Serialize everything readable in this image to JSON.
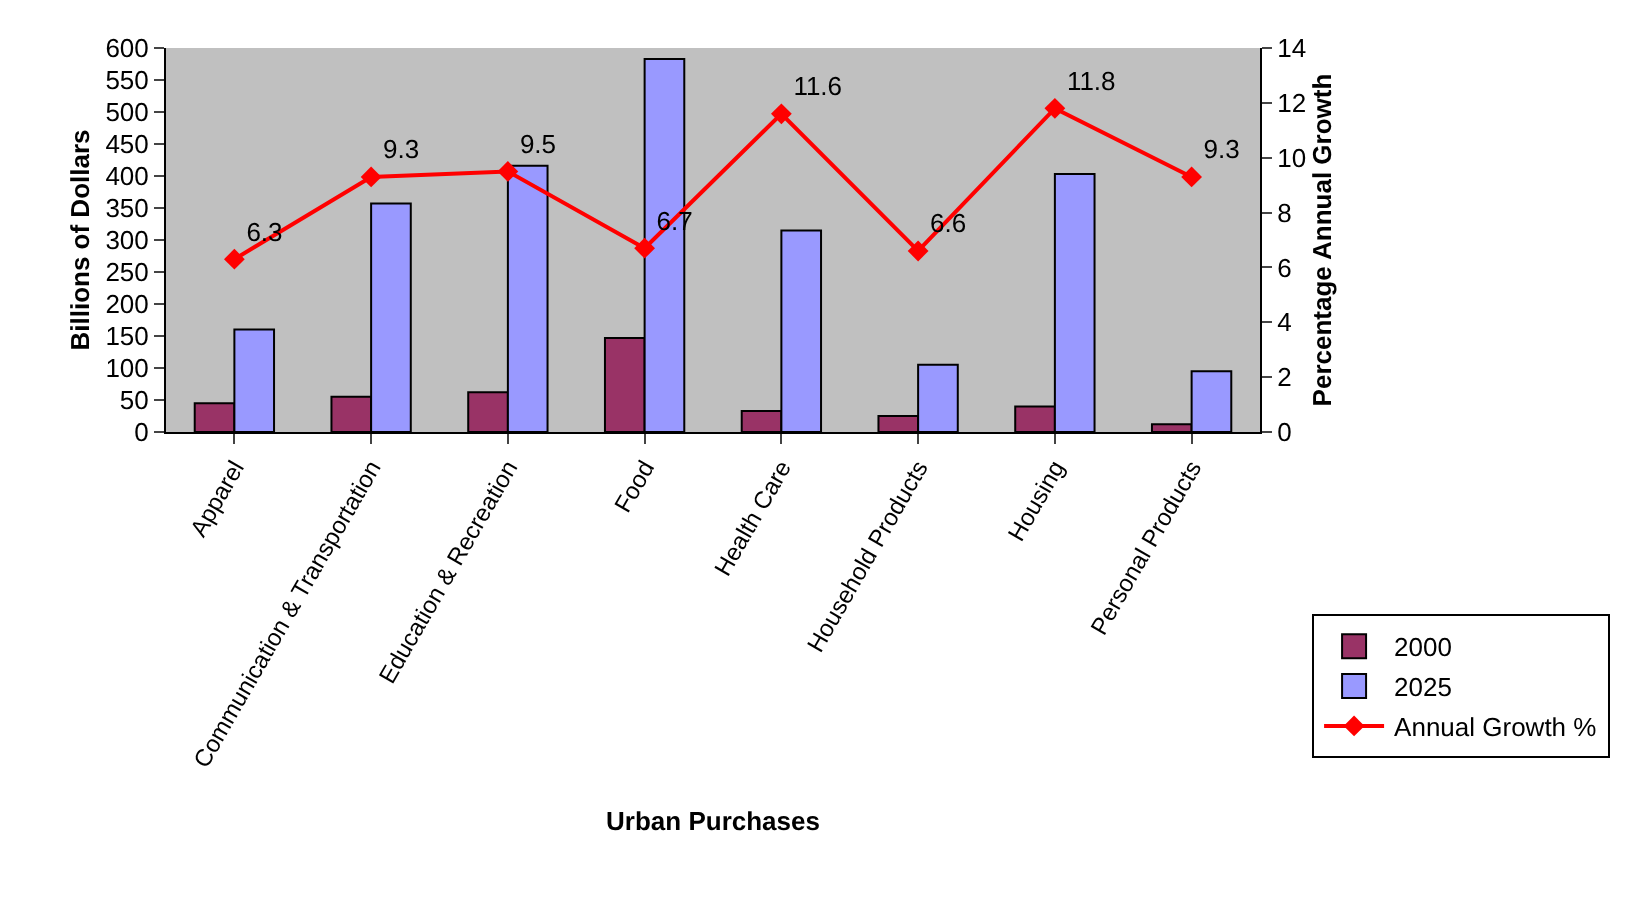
{
  "chart_data": {
    "type": "bar",
    "xlabel": "Urban Purchases",
    "ylabel": "Billions of Dollars",
    "y2label": "Percentage Annual Growth",
    "categories": [
      "Apparel",
      "Communication & Transportation",
      "Education & Recreation",
      "Food",
      "Health Care",
      "Household Products",
      "Housing",
      "Personal Products"
    ],
    "series": [
      {
        "name": "2000",
        "color": "#993366",
        "values": [
          45,
          55,
          62,
          147,
          33,
          25,
          40,
          12
        ]
      },
      {
        "name": "2025",
        "color": "#9999ff",
        "values": [
          160,
          357,
          416,
          583,
          315,
          105,
          403,
          95
        ]
      },
      {
        "name": "Annual Growth %",
        "type": "line",
        "axis": "y2",
        "color": "#ff0000",
        "marker": "diamond",
        "data_labels": true,
        "values": [
          6.3,
          9.3,
          9.5,
          6.7,
          11.6,
          6.6,
          11.8,
          9.3
        ]
      }
    ],
    "ylim": [
      0,
      600
    ],
    "yticks": [
      0,
      50,
      100,
      150,
      200,
      250,
      300,
      350,
      400,
      450,
      500,
      550,
      600
    ],
    "y2lim": [
      0,
      14
    ],
    "y2ticks": [
      0,
      2,
      4,
      6,
      8,
      10,
      12,
      14
    ],
    "grid": false,
    "legend": "bottom right"
  }
}
